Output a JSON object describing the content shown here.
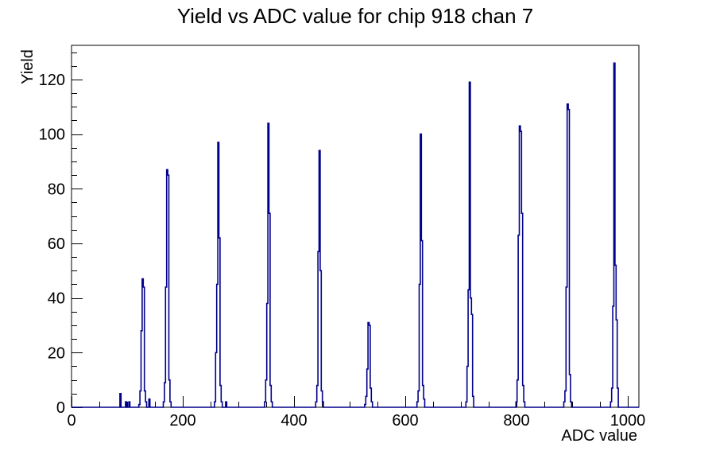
{
  "title": "Yield vs ADC value for chip 918 chan 7",
  "colors": {
    "histogram_line": "#00008b",
    "axis": "#000000",
    "background": "#ffffff",
    "text": "#000000"
  },
  "chart_data": {
    "type": "bar",
    "subtype": "step-histogram",
    "title": "Yield vs ADC value for chip 918 chan 7",
    "xlabel": "ADC value",
    "ylabel": "Yield",
    "xlim": [
      0,
      1020
    ],
    "ylim": [
      0,
      132.5
    ],
    "x_major_ticks": [
      0,
      200,
      400,
      600,
      800,
      1000
    ],
    "x_minor_step": 50,
    "y_major_ticks": [
      0,
      20,
      40,
      60,
      80,
      100,
      120
    ],
    "y_minor_step": 5,
    "grid": false,
    "legend": false,
    "bin_width": 2,
    "peaks": [
      {
        "adc": 88,
        "yield": 5
      },
      {
        "adc": 128,
        "yield": 47
      },
      {
        "adc": 172,
        "yield": 87
      },
      {
        "adc": 264,
        "yield": 97
      },
      {
        "adc": 354,
        "yield": 104
      },
      {
        "adc": 446,
        "yield": 94
      },
      {
        "adc": 534,
        "yield": 31
      },
      {
        "adc": 628,
        "yield": 100
      },
      {
        "adc": 716,
        "yield": 119
      },
      {
        "adc": 806,
        "yield": 103
      },
      {
        "adc": 892,
        "yield": 111
      },
      {
        "adc": 976,
        "yield": 126
      }
    ],
    "bins": [
      [
        88,
        5
      ],
      [
        98,
        2
      ],
      [
        104,
        2
      ],
      [
        122,
        1
      ],
      [
        124,
        6
      ],
      [
        126,
        28
      ],
      [
        128,
        47
      ],
      [
        130,
        44
      ],
      [
        132,
        6
      ],
      [
        134,
        2
      ],
      [
        140,
        3
      ],
      [
        166,
        2
      ],
      [
        168,
        9
      ],
      [
        170,
        44
      ],
      [
        172,
        87
      ],
      [
        174,
        85
      ],
      [
        176,
        10
      ],
      [
        178,
        2
      ],
      [
        258,
        2
      ],
      [
        260,
        20
      ],
      [
        262,
        45
      ],
      [
        264,
        97
      ],
      [
        266,
        62
      ],
      [
        268,
        8
      ],
      [
        270,
        2
      ],
      [
        278,
        2
      ],
      [
        348,
        2
      ],
      [
        350,
        10
      ],
      [
        352,
        38
      ],
      [
        354,
        104
      ],
      [
        356,
        71
      ],
      [
        358,
        8
      ],
      [
        360,
        2
      ],
      [
        440,
        2
      ],
      [
        442,
        8
      ],
      [
        444,
        57
      ],
      [
        446,
        94
      ],
      [
        448,
        50
      ],
      [
        450,
        6
      ],
      [
        452,
        2
      ],
      [
        528,
        1
      ],
      [
        530,
        4
      ],
      [
        532,
        14
      ],
      [
        534,
        31
      ],
      [
        536,
        30
      ],
      [
        538,
        7
      ],
      [
        540,
        2
      ],
      [
        622,
        2
      ],
      [
        624,
        6
      ],
      [
        626,
        45
      ],
      [
        628,
        100
      ],
      [
        630,
        61
      ],
      [
        632,
        8
      ],
      [
        634,
        3
      ],
      [
        710,
        2
      ],
      [
        712,
        15
      ],
      [
        714,
        43
      ],
      [
        716,
        119
      ],
      [
        718,
        40
      ],
      [
        720,
        34
      ],
      [
        722,
        4
      ],
      [
        800,
        2
      ],
      [
        802,
        10
      ],
      [
        804,
        63
      ],
      [
        806,
        103
      ],
      [
        808,
        101
      ],
      [
        810,
        71
      ],
      [
        812,
        8
      ],
      [
        814,
        2
      ],
      [
        886,
        2
      ],
      [
        888,
        6
      ],
      [
        890,
        44
      ],
      [
        892,
        111
      ],
      [
        894,
        109
      ],
      [
        896,
        12
      ],
      [
        898,
        2
      ],
      [
        970,
        2
      ],
      [
        972,
        7
      ],
      [
        974,
        37
      ],
      [
        976,
        126
      ],
      [
        978,
        52
      ],
      [
        980,
        32
      ],
      [
        982,
        7
      ]
    ]
  }
}
